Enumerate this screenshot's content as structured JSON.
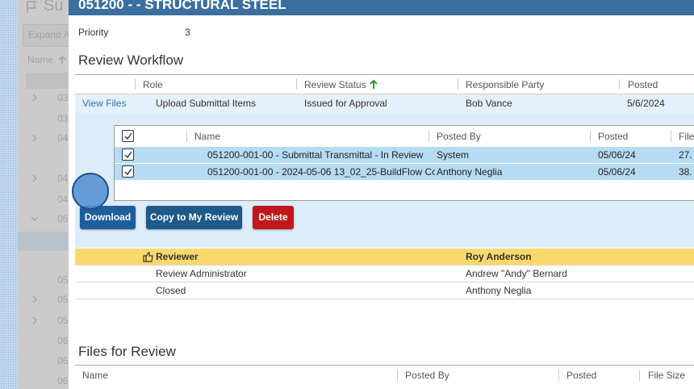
{
  "background_page": {
    "title": "Su",
    "expand": "Expand A",
    "name_column": "Name",
    "rows": [
      "03",
      "03",
      "04",
      "04",
      "04",
      "05",
      "05",
      "05",
      "05",
      "06",
      "06",
      "06"
    ]
  },
  "header": {
    "title": "051200 - - STRUCTURAL STEEL"
  },
  "priority": {
    "label": "Priority",
    "value": "3"
  },
  "review_workflow": {
    "title": "Review Workflow",
    "columns": [
      "Role",
      "Review Status",
      "Responsible Party",
      "Posted"
    ],
    "row": {
      "link": "View Files",
      "role": "Upload Submittal Items",
      "status": "Issued for Approval",
      "party": "Bob Vance",
      "posted": "5/6/2024"
    }
  },
  "files_table": {
    "columns": [
      "Name",
      "Posted By",
      "Posted",
      "File"
    ],
    "rows": [
      [
        "051200-001-00 - Submittal Transmittal - In Review",
        "System",
        "05/06/24",
        "27."
      ],
      [
        "051200-001-00 - 2024-05-06 13_02_25-BuildFlow Co",
        "Anthony Neglia",
        "05/06/24",
        "38."
      ]
    ]
  },
  "buttons": [
    "Download",
    "Copy to My Review",
    "Delete"
  ],
  "reviewers": [
    [
      "Reviewer",
      "Roy Anderson"
    ],
    [
      "Review Administrator",
      "Andrew \"Andy\" Bernard"
    ],
    [
      "Closed",
      "Anthony Neglia"
    ]
  ],
  "files_for_review": {
    "title": "Files for Review",
    "columns": [
      "Name",
      "Posted By",
      "Posted",
      "File Size"
    ]
  }
}
